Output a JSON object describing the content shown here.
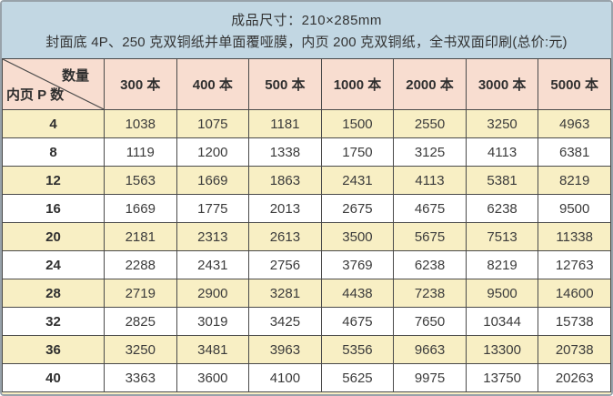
{
  "header": {
    "line1": "成品尺寸：210×285mm",
    "line2": "封面底 4P、250 克双铜纸并单面覆哑膜，内页 200 克双铜纸，全书双面印刷(总价:元)"
  },
  "table": {
    "corner": {
      "top_label": "数量",
      "bottom_label": "内页 P 数"
    },
    "columns": [
      "300 本",
      "400 本",
      "500 本",
      "1000 本",
      "2000 本",
      "3000 本",
      "5000 本"
    ],
    "rows": [
      {
        "pages": "4",
        "prices": [
          "1038",
          "1075",
          "1181",
          "1500",
          "2550",
          "3250",
          "4963"
        ]
      },
      {
        "pages": "8",
        "prices": [
          "1119",
          "1200",
          "1338",
          "1750",
          "3125",
          "4113",
          "6381"
        ]
      },
      {
        "pages": "12",
        "prices": [
          "1563",
          "1669",
          "1863",
          "2431",
          "4113",
          "5381",
          "8219"
        ]
      },
      {
        "pages": "16",
        "prices": [
          "1669",
          "1775",
          "2013",
          "2675",
          "4675",
          "6238",
          "9500"
        ]
      },
      {
        "pages": "20",
        "prices": [
          "2181",
          "2313",
          "2613",
          "3500",
          "5675",
          "7513",
          "11338"
        ]
      },
      {
        "pages": "24",
        "prices": [
          "2288",
          "2431",
          "2756",
          "3769",
          "6238",
          "8219",
          "12763"
        ]
      },
      {
        "pages": "28",
        "prices": [
          "2719",
          "2900",
          "3281",
          "4438",
          "7238",
          "9500",
          "14600"
        ]
      },
      {
        "pages": "32",
        "prices": [
          "2825",
          "3019",
          "3425",
          "4675",
          "7650",
          "10344",
          "15738"
        ]
      },
      {
        "pages": "36",
        "prices": [
          "3250",
          "3481",
          "3963",
          "5356",
          "9663",
          "13300",
          "20738"
        ]
      },
      {
        "pages": "40",
        "prices": [
          "3363",
          "3600",
          "4100",
          "5625",
          "9975",
          "13750",
          "20263"
        ]
      }
    ]
  },
  "colors": {
    "band_blue": "#c2d7e3",
    "header_pink": "#f8ddd0",
    "row_cream": "#f8efc4",
    "row_white": "#ffffff",
    "cell_border": "#4a4a4a",
    "frame_border": "#98a2aa"
  }
}
